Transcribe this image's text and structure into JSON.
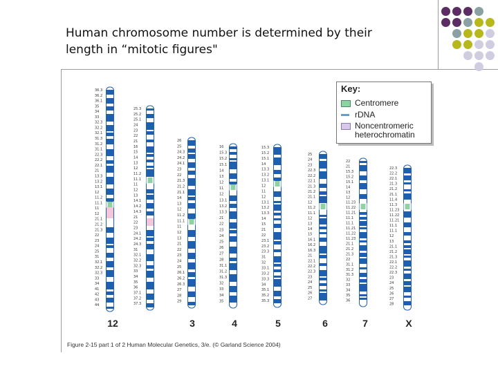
{
  "title": {
    "line1": "Human chromosome number is determined by their",
    "line2": "length in “mitotic figures\""
  },
  "colors": {
    "accent_dots": [
      "#5b2d63",
      "#8aa0a2",
      "#b7b71e",
      "#cfcde0"
    ],
    "band": "#1f5fb0",
    "centromere": "#8fd3a4",
    "heterochromatin": "#f2c6dc",
    "rdna": "#5f9fd8"
  },
  "key": {
    "title": "Key:",
    "items": [
      {
        "label": "Centromere",
        "color": "#8fd3a4"
      },
      {
        "label": "rDNA",
        "color": "#5f9fd8"
      },
      {
        "label": "Noncentromeric",
        "color": "#d8c8ec"
      },
      {
        "label": "heterochromatin",
        "color": ""
      }
    ]
  },
  "chromosomes": [
    {
      "label": "12",
      "labels_left": [
        "36.3",
        "36.2",
        "36.1",
        "35",
        "34",
        "33",
        "32.3",
        "32.2",
        "32.1",
        "31.3",
        "31.2",
        "31.1",
        "22.3",
        "22.2",
        "22.1",
        "21",
        "13.3",
        "13.2",
        "13.1",
        "12",
        "11.2",
        "11.1",
        "11",
        "12",
        "21.1",
        "21.2",
        "21.3",
        "22",
        "23",
        "24",
        "25",
        "31",
        "32.1",
        "32.2",
        "32.3",
        "33",
        "34",
        "41",
        "42",
        "43",
        "44"
      ]
    },
    {
      "label": "2",
      "labels_left": [
        "25.3",
        "25.2",
        "25.1",
        "24",
        "23",
        "22",
        "21",
        "16",
        "15",
        "14",
        "13",
        "12",
        "11.2",
        "11.1",
        "11",
        "12",
        "13",
        "14.1",
        "14.2",
        "14.3",
        "21",
        "22",
        "23",
        "24.1",
        "24.2",
        "24.3",
        "31",
        "32.1",
        "32.2",
        "32.3",
        "33",
        "34",
        "35",
        "36",
        "37.1",
        "37.2",
        "37.3"
      ]
    },
    {
      "label": "3",
      "labels_left": [
        "26",
        "25",
        "24.3",
        "24.2",
        "24.1",
        "23",
        "22",
        "21.3",
        "21.2",
        "21.1",
        "14",
        "13",
        "12",
        "11.2",
        "11.1",
        "11",
        "12",
        "13",
        "21",
        "22",
        "23",
        "24",
        "25",
        "26.1",
        "26.2",
        "26.3",
        "27",
        "28",
        "29"
      ]
    },
    {
      "label": "4",
      "labels_left": [
        "16",
        "15.3",
        "15.2",
        "15.1",
        "14",
        "13",
        "12",
        "11",
        "12",
        "13.1",
        "13.2",
        "13.3",
        "21",
        "22",
        "23",
        "24",
        "25",
        "26",
        "27",
        "28",
        "31.1",
        "31.2",
        "31.3",
        "32",
        "33",
        "34",
        "35"
      ]
    },
    {
      "label": "5",
      "labels_left": [
        "15.3",
        "15.2",
        "15.1",
        "14",
        "13.3",
        "13.2",
        "13.1",
        "12",
        "11",
        "12",
        "13.1",
        "13.2",
        "13.3",
        "14",
        "15",
        "21",
        "22",
        "23.1",
        "23.2",
        "23.3",
        "31",
        "32",
        "33.1",
        "33.2",
        "33.3",
        "34",
        "35.1",
        "35.2",
        "35.3"
      ]
    },
    {
      "label": "6",
      "labels_left": [
        "25",
        "24",
        "23",
        "22.3",
        "22.2",
        "22.1",
        "21.3",
        "21.2",
        "21.1",
        "12",
        "11.2",
        "11.1",
        "12",
        "13",
        "14",
        "15",
        "16.1",
        "16.2",
        "16.3",
        "21",
        "22.1",
        "22.2",
        "22.3",
        "23",
        "24",
        "25",
        "26",
        "27"
      ]
    },
    {
      "label": "7",
      "labels_left": [
        "22",
        "21",
        "15.3",
        "15.2",
        "15.1",
        "14",
        "13",
        "12",
        "11.23",
        "11.22",
        "11.21",
        "11.1",
        "11.1",
        "11.21",
        "11.22",
        "11.23",
        "21.1",
        "21.2",
        "21.3",
        "22",
        "31.1",
        "31.2",
        "31.3",
        "32",
        "33",
        "34",
        "35",
        "36"
      ]
    },
    {
      "label": "X",
      "labels_left": [
        "22.3",
        "22.2",
        "22.1",
        "21.3",
        "21.2",
        "21.1",
        "11.4",
        "11.3",
        "11.23",
        "11.22",
        "11.21",
        "11.1",
        "11.1",
        "12",
        "13",
        "21.1",
        "21.2",
        "21.3",
        "22.1",
        "22.2",
        "22.3",
        "23",
        "24",
        "25",
        "26",
        "27",
        "28"
      ]
    }
  ],
  "caption": "Figure 2-15 part 1 of 2  Human Molecular Genetics, 3/e.  (© Garland Science 2004)"
}
